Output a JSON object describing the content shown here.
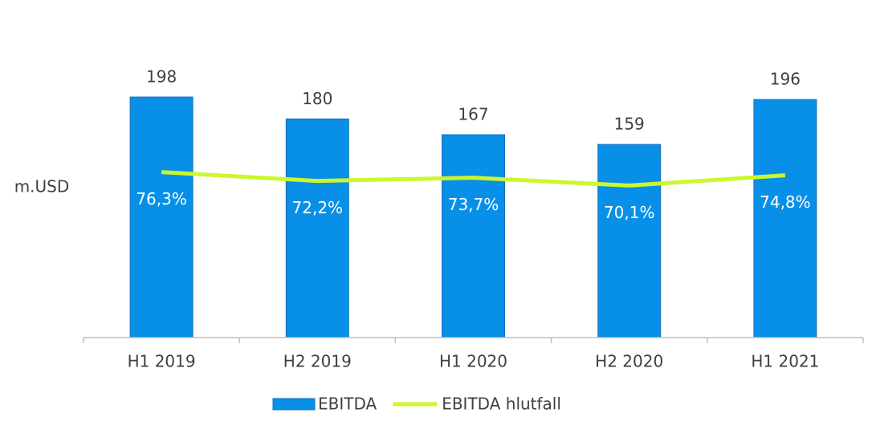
{
  "chart_data": {
    "type": "bar",
    "y_label": "m.USD",
    "categories": [
      "H1 2019",
      "H2 2019",
      "H1 2020",
      "H2 2020",
      "H1 2021"
    ],
    "series": [
      {
        "name": "EBITDA",
        "type": "bar",
        "color": "#0890e8",
        "values": [
          198,
          180,
          167,
          159,
          196
        ]
      },
      {
        "name": "EBITDA hlutfall",
        "type": "line",
        "axis": "y2",
        "color": "#ccf72c",
        "values": [
          76.3,
          72.2,
          73.7,
          70.1,
          74.8
        ],
        "value_labels": [
          "76,3%",
          "72,2%",
          "73,7%",
          "70,1%",
          "74,8%"
        ]
      }
    ],
    "ylim": [
      0,
      200
    ],
    "y2lim": [
      0,
      112
    ],
    "legend": "bottom"
  }
}
